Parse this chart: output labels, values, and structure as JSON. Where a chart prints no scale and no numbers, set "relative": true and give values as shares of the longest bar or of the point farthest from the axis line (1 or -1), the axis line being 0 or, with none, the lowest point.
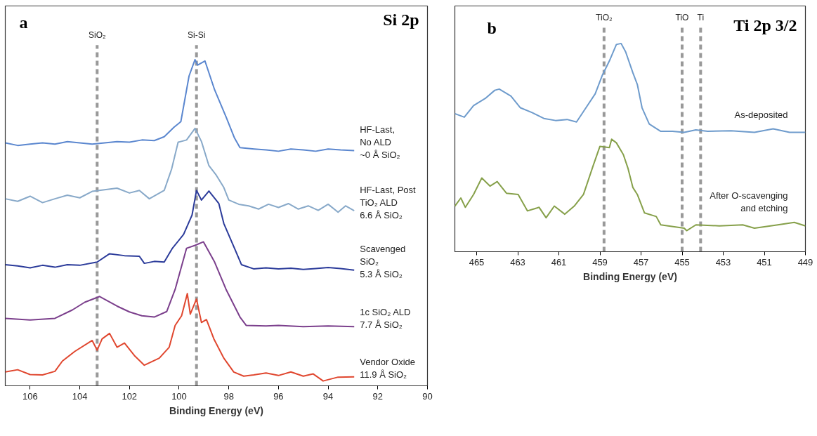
{
  "chart_data": [
    {
      "type": "line",
      "title": "Si 2p",
      "xlabel": "Binding Energy (eV)",
      "relative": true,
      "grid": false,
      "xlim": [
        107,
        90
      ],
      "xticks": [
        106,
        104,
        102,
        100,
        98,
        96,
        94,
        92,
        90
      ],
      "annotations": [
        "a"
      ],
      "ref_lines": [
        {
          "axis": "x",
          "value": 103.3,
          "label": "SiO₂",
          "color": "#999999",
          "line_style": "dashed"
        },
        {
          "axis": "x",
          "value": 99.3,
          "label": "Si-Si",
          "color": "#999999",
          "line_style": "dashed"
        }
      ],
      "series": [
        {
          "name": "HF-Last,\nNo ALD\n~0 Å SiO₂",
          "color": "#5b87cf",
          "x": [
            107,
            106.5,
            106,
            105.5,
            105,
            104.5,
            104,
            103.5,
            103,
            102.5,
            102,
            101.5,
            101,
            100.6,
            100.2,
            99.93,
            99.6,
            99.36,
            99.25,
            98.96,
            98.57,
            98.1,
            97.77,
            97.55,
            96.98,
            96.5,
            96,
            95.5,
            95,
            94.5,
            94,
            93.5,
            92.95
          ],
          "values": [
            0.741,
            0.733,
            0.737,
            0.741,
            0.737,
            0.745,
            0.741,
            0.737,
            0.741,
            0.745,
            0.743,
            0.75,
            0.748,
            0.76,
            0.79,
            0.807,
            0.949,
            1.0,
            0.983,
            0.996,
            0.906,
            0.82,
            0.756,
            0.726,
            0.722,
            0.719,
            0.715,
            0.722,
            0.719,
            0.715,
            0.722,
            0.719,
            0.717
          ]
        },
        {
          "name": "HF-Last, Post\nTiO₂ ALD\n6.6 Å SiO₂",
          "color": "#88a9c9",
          "x": [
            107,
            106.5,
            106,
            105.5,
            105,
            104.5,
            104,
            103.5,
            103,
            102.5,
            102,
            101.6,
            101.2,
            100.6,
            100.3,
            100.04,
            99.7,
            99.36,
            99.1,
            98.8,
            98.5,
            98.2,
            98.0,
            97.6,
            97.2,
            96.8,
            96.4,
            96,
            95.6,
            95.2,
            94.8,
            94.4,
            94,
            93.6,
            93.3,
            92.95
          ],
          "values": [
            0.567,
            0.559,
            0.575,
            0.555,
            0.567,
            0.578,
            0.57,
            0.59,
            0.595,
            0.6,
            0.585,
            0.593,
            0.567,
            0.593,
            0.66,
            0.743,
            0.75,
            0.786,
            0.745,
            0.67,
            0.64,
            0.602,
            0.563,
            0.55,
            0.545,
            0.535,
            0.55,
            0.54,
            0.552,
            0.535,
            0.545,
            0.531,
            0.55,
            0.525,
            0.545,
            0.53
          ]
        },
        {
          "name": "Scavenged\nSiO₂\n5.3 Å SiO₂",
          "color": "#2b3b9a",
          "x": [
            107,
            106.5,
            106,
            105.5,
            105,
            104.5,
            104,
            103.3,
            102.8,
            102.2,
            101.6,
            101.4,
            101,
            100.6,
            100.27,
            99.82,
            99.48,
            99.3,
            99.1,
            98.8,
            98.4,
            98.2,
            97.77,
            97.49,
            97,
            96.5,
            96,
            95.5,
            95,
            94.5,
            94,
            93.5,
            92.95
          ],
          "values": [
            0.362,
            0.358,
            0.352,
            0.36,
            0.354,
            0.362,
            0.36,
            0.37,
            0.396,
            0.39,
            0.388,
            0.366,
            0.372,
            0.37,
            0.413,
            0.456,
            0.516,
            0.593,
            0.563,
            0.591,
            0.552,
            0.49,
            0.413,
            0.362,
            0.349,
            0.352,
            0.349,
            0.351,
            0.347,
            0.35,
            0.353,
            0.35,
            0.345
          ]
        },
        {
          "name": "1c SiO₂ ALD\n7.7 Å SiO₂",
          "color": "#7b3f8c",
          "x": [
            107,
            106,
            105,
            104.3,
            103.8,
            103.2,
            102.5,
            102,
            101.5,
            101,
            100.5,
            100.16,
            99.7,
            99.36,
            99.02,
            98.57,
            98.11,
            97.55,
            97.3,
            96.5,
            96,
            95,
            94,
            92.95
          ],
          "values": [
            0.195,
            0.19,
            0.195,
            0.221,
            0.245,
            0.263,
            0.233,
            0.215,
            0.203,
            0.199,
            0.216,
            0.285,
            0.413,
            0.422,
            0.433,
            0.37,
            0.285,
            0.199,
            0.173,
            0.171,
            0.173,
            0.169,
            0.171,
            0.169
          ]
        },
        {
          "name": "Vendor Oxide\n11.9 Å SiO₂",
          "color": "#e0472f",
          "x": [
            107,
            106.5,
            106,
            105.5,
            105,
            104.7,
            104.2,
            103.5,
            103.3,
            103.1,
            102.8,
            102.5,
            102.2,
            101.8,
            101.4,
            100.8,
            100.4,
            100.16,
            99.9,
            99.67,
            99.55,
            99.3,
            99.1,
            98.9,
            98.6,
            98.2,
            97.8,
            97.4,
            97,
            96.5,
            96,
            95.5,
            95,
            94.6,
            94.2,
            93.6,
            92.95
          ],
          "values": [
            0.028,
            0.035,
            0.02,
            0.019,
            0.03,
            0.062,
            0.092,
            0.126,
            0.096,
            0.131,
            0.148,
            0.105,
            0.118,
            0.079,
            0.049,
            0.071,
            0.105,
            0.173,
            0.203,
            0.272,
            0.208,
            0.255,
            0.182,
            0.191,
            0.131,
            0.071,
            0.028,
            0.015,
            0.019,
            0.025,
            0.017,
            0.028,
            0.015,
            0.022,
            0.0,
            0.012,
            0.013
          ]
        }
      ]
    },
    {
      "type": "line",
      "title": "Ti 2p 3/2",
      "xlabel": "Binding Energy (eV)",
      "relative": true,
      "grid": false,
      "xlim": [
        466.06,
        449
      ],
      "xticks": [
        465,
        463,
        461,
        459,
        457,
        455,
        453,
        451,
        449
      ],
      "annotations": [
        "b"
      ],
      "ref_lines": [
        {
          "axis": "x",
          "value": 458.8,
          "label": "TiO₂",
          "color": "#999999",
          "line_style": "dashed"
        },
        {
          "axis": "x",
          "value": 455.0,
          "label": "TiO",
          "color": "#999999",
          "line_style": "dashed"
        },
        {
          "axis": "x",
          "value": 454.1,
          "label": "Ti",
          "color": "#999999",
          "line_style": "dashed"
        }
      ],
      "series": [
        {
          "name": "As-deposited",
          "color": "#6e9bcc",
          "x": [
            466.06,
            465.6,
            465.15,
            464.58,
            464.12,
            463.9,
            463.33,
            462.87,
            462.3,
            461.73,
            461.16,
            460.6,
            460.14,
            459.68,
            459.23,
            458.88,
            458.54,
            458.2,
            457.97,
            457.75,
            457.4,
            457.18,
            456.95,
            456.6,
            456.04,
            455.47,
            454.9,
            454.33,
            453.76,
            452.62,
            451.48,
            450.57,
            449.77,
            449.0
          ],
          "values": [
            0.663,
            0.646,
            0.702,
            0.736,
            0.775,
            0.781,
            0.747,
            0.691,
            0.668,
            0.64,
            0.63,
            0.635,
            0.623,
            0.691,
            0.758,
            0.848,
            0.916,
            0.995,
            1.0,
            0.96,
            0.86,
            0.803,
            0.691,
            0.613,
            0.578,
            0.578,
            0.573,
            0.585,
            0.578,
            0.581,
            0.573,
            0.59,
            0.573,
            0.573
          ]
        },
        {
          "name": "After O-scavenging\nand etching",
          "color": "#86a04a",
          "x": [
            466.06,
            465.77,
            465.55,
            465.15,
            464.75,
            464.35,
            464.0,
            463.55,
            462.98,
            462.53,
            461.96,
            461.62,
            461.22,
            460.71,
            460.25,
            459.8,
            459.34,
            459.0,
            458.54,
            458.43,
            458.2,
            457.86,
            457.63,
            457.4,
            457.18,
            456.83,
            456.26,
            456.04,
            454.9,
            454.78,
            454.33,
            453.19,
            452.05,
            451.48,
            450.34,
            449.54,
            449.0
          ],
          "values": [
            0.219,
            0.258,
            0.213,
            0.275,
            0.354,
            0.315,
            0.337,
            0.281,
            0.275,
            0.196,
            0.213,
            0.163,
            0.219,
            0.18,
            0.219,
            0.275,
            0.41,
            0.506,
            0.5,
            0.54,
            0.523,
            0.466,
            0.399,
            0.309,
            0.275,
            0.186,
            0.169,
            0.129,
            0.113,
            0.101,
            0.129,
            0.124,
            0.129,
            0.113,
            0.129,
            0.141,
            0.124
          ]
        }
      ]
    }
  ]
}
